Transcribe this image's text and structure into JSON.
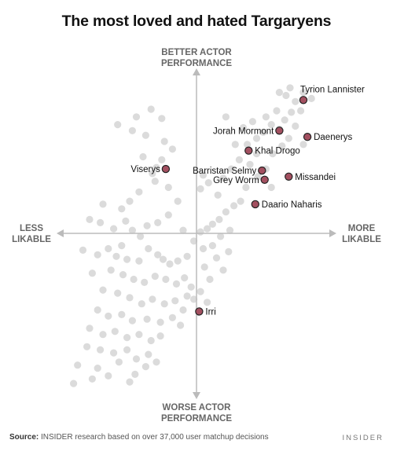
{
  "chart_data": {
    "type": "scatter",
    "title": "The most loved and hated Targaryens",
    "axes": {
      "top": [
        "BETTER ACTOR",
        "PERFORMANCE"
      ],
      "bottom": [
        "WORSE ACTOR",
        "PERFORMANCE"
      ],
      "left": [
        "LESS",
        "LIKABLE"
      ],
      "right": [
        "MORE",
        "LIKABLE"
      ]
    },
    "xlim": [
      -1,
      1
    ],
    "ylim": [
      -1,
      1
    ],
    "background_points": [
      [
        -0.34,
        0.81
      ],
      [
        -0.26,
        0.75
      ],
      [
        -0.45,
        0.76
      ],
      [
        -0.59,
        0.71
      ],
      [
        -0.48,
        0.67
      ],
      [
        -0.38,
        0.64
      ],
      [
        -0.24,
        0.6
      ],
      [
        -0.18,
        0.55
      ],
      [
        -0.26,
        0.48
      ],
      [
        -0.3,
        0.43
      ],
      [
        -0.33,
        0.39
      ],
      [
        -0.4,
        0.5
      ],
      [
        -0.31,
        0.34
      ],
      [
        -0.21,
        0.3
      ],
      [
        -0.43,
        0.27
      ],
      [
        -0.5,
        0.21
      ],
      [
        -0.56,
        0.16
      ],
      [
        -0.7,
        0.19
      ],
      [
        -0.53,
        0.08
      ],
      [
        -0.72,
        0.07
      ],
      [
        -0.8,
        0.09
      ],
      [
        -0.62,
        0.03
      ],
      [
        -0.48,
        0.02
      ],
      [
        -0.42,
        -0.02
      ],
      [
        -0.37,
        0.05
      ],
      [
        -0.29,
        0.07
      ],
      [
        -0.21,
        0.12
      ],
      [
        -0.14,
        0.21
      ],
      [
        -0.1,
        0.02
      ],
      [
        -0.56,
        -0.08
      ],
      [
        -0.66,
        -0.1
      ],
      [
        -0.74,
        -0.14
      ],
      [
        -0.85,
        -0.11
      ],
      [
        -0.6,
        -0.15
      ],
      [
        -0.52,
        -0.17
      ],
      [
        -0.43,
        -0.18
      ],
      [
        -0.36,
        -0.1
      ],
      [
        -0.29,
        -0.14
      ],
      [
        -0.25,
        -0.17
      ],
      [
        -0.2,
        -0.2
      ],
      [
        -0.14,
        -0.18
      ],
      [
        -0.07,
        -0.15
      ],
      [
        -0.78,
        -0.26
      ],
      [
        -0.64,
        -0.24
      ],
      [
        -0.55,
        -0.27
      ],
      [
        -0.47,
        -0.3
      ],
      [
        -0.39,
        -0.32
      ],
      [
        -0.31,
        -0.28
      ],
      [
        -0.23,
        -0.3
      ],
      [
        -0.15,
        -0.33
      ],
      [
        -0.09,
        -0.29
      ],
      [
        -0.7,
        -0.37
      ],
      [
        -0.59,
        -0.39
      ],
      [
        -0.5,
        -0.42
      ],
      [
        -0.41,
        -0.46
      ],
      [
        -0.33,
        -0.43
      ],
      [
        -0.24,
        -0.46
      ],
      [
        -0.16,
        -0.44
      ],
      [
        -0.07,
        -0.41
      ],
      [
        -0.74,
        -0.5
      ],
      [
        -0.66,
        -0.54
      ],
      [
        -0.56,
        -0.53
      ],
      [
        -0.48,
        -0.57
      ],
      [
        -0.37,
        -0.56
      ],
      [
        -0.27,
        -0.58
      ],
      [
        -0.18,
        -0.55
      ],
      [
        -0.12,
        -0.6
      ],
      [
        -0.8,
        -0.62
      ],
      [
        -0.7,
        -0.66
      ],
      [
        -0.61,
        -0.64
      ],
      [
        -0.52,
        -0.68
      ],
      [
        -0.43,
        -0.66
      ],
      [
        -0.34,
        -0.7
      ],
      [
        -0.27,
        -0.67
      ],
      [
        -0.82,
        -0.74
      ],
      [
        -0.72,
        -0.76
      ],
      [
        -0.62,
        -0.78
      ],
      [
        -0.52,
        -0.76
      ],
      [
        -0.45,
        -0.82
      ],
      [
        -0.36,
        -0.79
      ],
      [
        -0.3,
        -0.84
      ],
      [
        -0.89,
        -0.86
      ],
      [
        -0.74,
        -0.88
      ],
      [
        -0.58,
        -0.84
      ],
      [
        -0.46,
        -0.92
      ],
      [
        -0.38,
        -0.87
      ],
      [
        -0.66,
        -0.93
      ],
      [
        -0.92,
        -0.98
      ],
      [
        -0.78,
        -0.95
      ],
      [
        -0.5,
        -0.97
      ],
      [
        -0.1,
        -0.5
      ],
      [
        -0.04,
        -0.35
      ],
      [
        -0.02,
        -0.05
      ],
      [
        0.03,
        0.01
      ],
      [
        0.08,
        0.03
      ],
      [
        0.12,
        0.06
      ],
      [
        0.17,
        0.09
      ],
      [
        0.22,
        0.14
      ],
      [
        0.28,
        0.18
      ],
      [
        0.33,
        0.21
      ],
      [
        0.16,
        0.25
      ],
      [
        0.09,
        0.33
      ],
      [
        0.05,
        0.38
      ],
      [
        0.03,
        0.29
      ],
      [
        0.2,
        0.36
      ],
      [
        0.26,
        0.42
      ],
      [
        0.32,
        0.48
      ],
      [
        0.4,
        0.45
      ],
      [
        0.45,
        0.52
      ],
      [
        0.38,
        0.58
      ],
      [
        0.45,
        0.62
      ],
      [
        0.5,
        0.66
      ],
      [
        0.56,
        0.71
      ],
      [
        0.62,
        0.68
      ],
      [
        0.66,
        0.74
      ],
      [
        0.71,
        0.79
      ],
      [
        0.6,
        0.8
      ],
      [
        0.52,
        0.76
      ],
      [
        0.69,
        0.62
      ],
      [
        0.74,
        0.7
      ],
      [
        0.64,
        0.57
      ],
      [
        0.8,
        0.58
      ],
      [
        0.57,
        0.52
      ],
      [
        0.52,
        0.42
      ],
      [
        0.46,
        0.37
      ],
      [
        0.37,
        0.3
      ],
      [
        0.56,
        0.3
      ],
      [
        0.29,
        0.58
      ],
      [
        0.22,
        0.76
      ],
      [
        0.35,
        0.69
      ],
      [
        0.42,
        0.73
      ],
      [
        0.74,
        0.86
      ],
      [
        0.67,
        0.9
      ],
      [
        0.62,
        0.92
      ],
      [
        0.8,
        0.92
      ],
      [
        0.86,
        0.88
      ],
      [
        0.78,
        0.8
      ],
      [
        0.7,
        0.95
      ],
      [
        0.25,
        0.02
      ],
      [
        0.18,
        -0.02
      ],
      [
        0.12,
        -0.08
      ],
      [
        0.05,
        -0.1
      ],
      [
        0.24,
        -0.12
      ],
      [
        0.15,
        -0.16
      ],
      [
        0.06,
        -0.22
      ],
      [
        0.2,
        -0.24
      ],
      [
        0.1,
        -0.3
      ],
      [
        0.03,
        -0.38
      ],
      [
        0.08,
        -0.45
      ],
      [
        -0.02,
        -0.43
      ]
    ],
    "highlighted": [
      {
        "name": "Tyrion Lannister",
        "x": 0.8,
        "y": 0.87
      },
      {
        "name": "Jorah Mormont",
        "x": 0.62,
        "y": 0.67
      },
      {
        "name": "Daenerys",
        "x": 0.83,
        "y": 0.63
      },
      {
        "name": "Khal Drogo",
        "x": 0.39,
        "y": 0.54
      },
      {
        "name": "Viserys",
        "x": -0.23,
        "y": 0.42
      },
      {
        "name": "Barristan Selmy",
        "x": 0.49,
        "y": 0.41
      },
      {
        "name": "Missandei",
        "x": 0.69,
        "y": 0.37
      },
      {
        "name": "Grey Worm",
        "x": 0.51,
        "y": 0.35
      },
      {
        "name": "Daario Naharis",
        "x": 0.44,
        "y": 0.19
      },
      {
        "name": "Irri",
        "x": 0.02,
        "y": -0.51
      }
    ],
    "colors": {
      "highlight_fill": "#a35060",
      "highlight_stroke": "#222222",
      "background_point": "#cfcfcf",
      "axis": "#bbbbbb"
    }
  },
  "footer": {
    "source_label": "Source:",
    "source_text": "INSIDER research based on over 37,000 user matchup decisions",
    "brand": "INSIDER"
  }
}
